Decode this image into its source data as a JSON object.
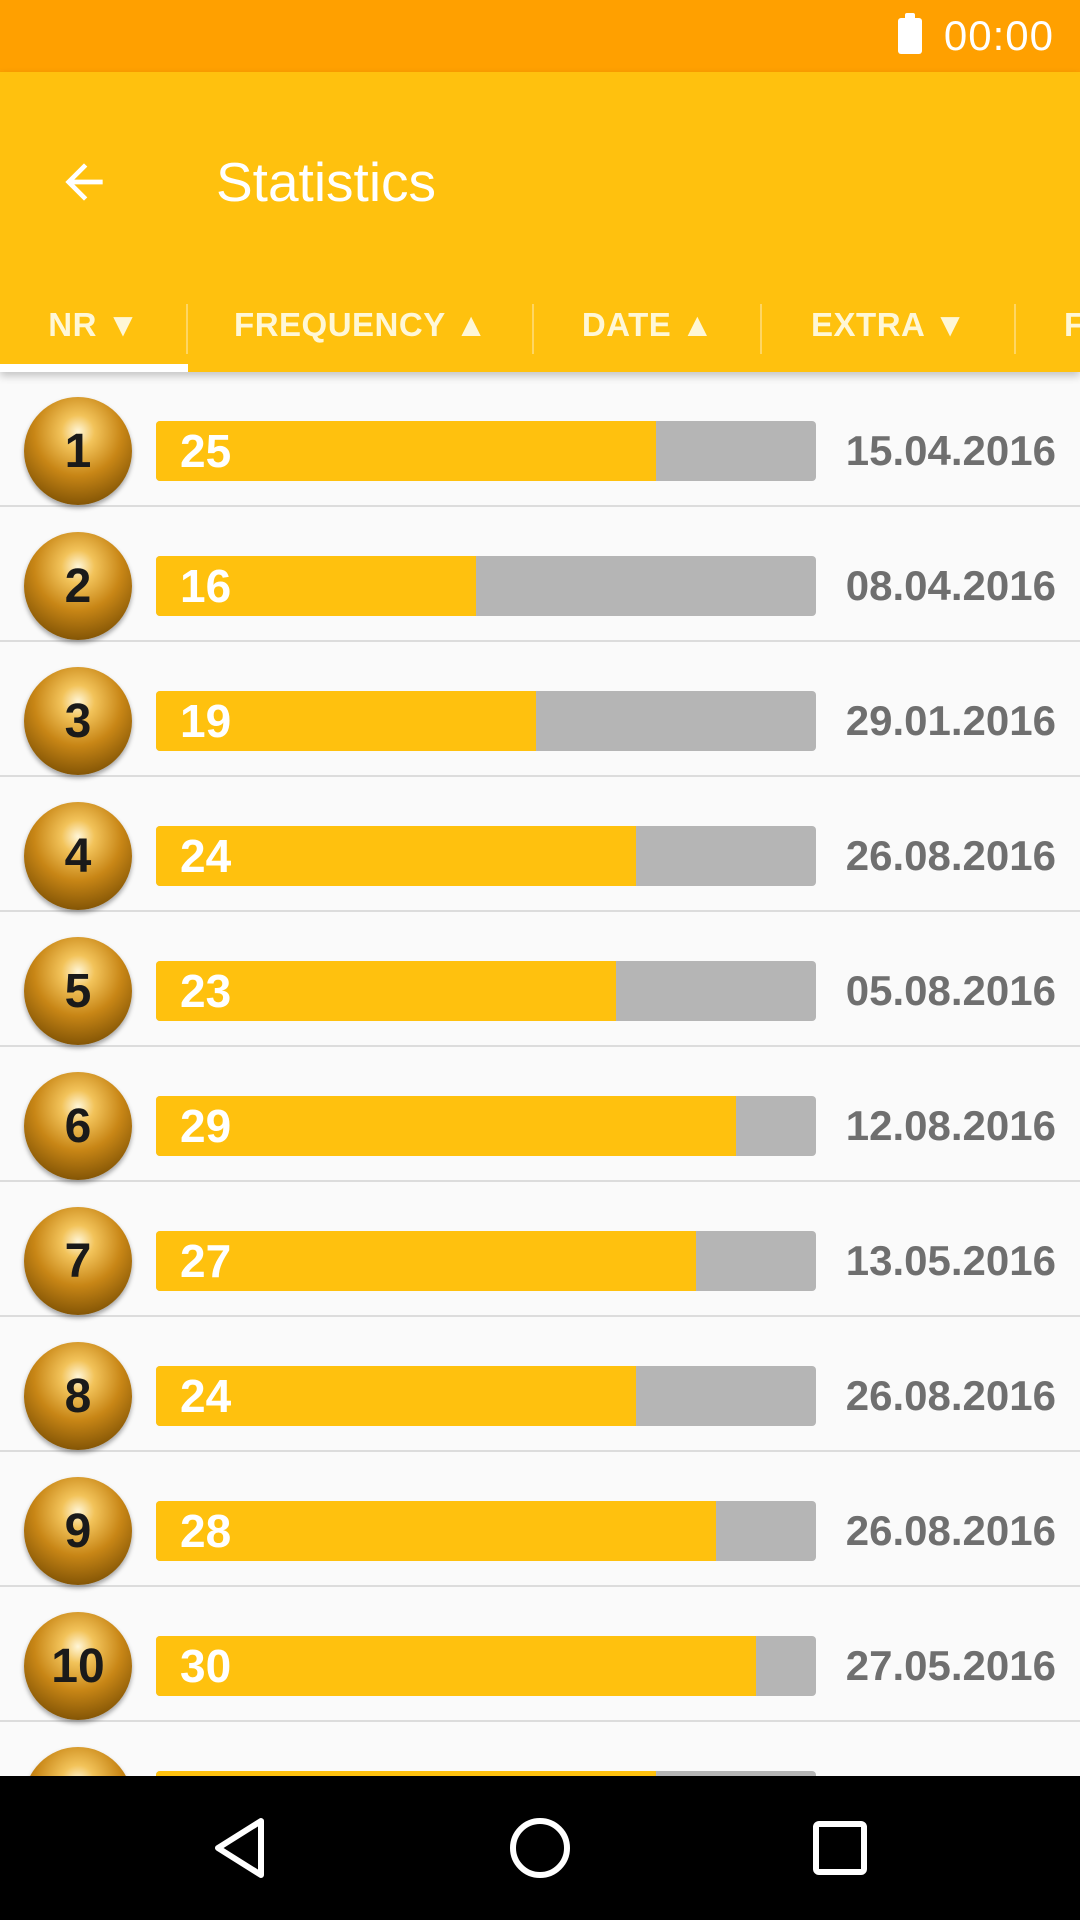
{
  "status_bar": {
    "time": "00:00",
    "battery_icon": "battery-icon"
  },
  "app_bar": {
    "title": "Statistics",
    "back_icon": "arrow-left-icon"
  },
  "tabs": [
    {
      "label": "NR ▼",
      "active": true
    },
    {
      "label": "FREQUENCY ▲",
      "active": false
    },
    {
      "label": "DATE ▲",
      "active": false
    },
    {
      "label": "EXTRA ▼",
      "active": false
    },
    {
      "label": "F",
      "active": false
    }
  ],
  "max_frequency": 33,
  "rows": [
    {
      "number": "1",
      "frequency": 25,
      "date": "15.04.2016"
    },
    {
      "number": "2",
      "frequency": 16,
      "date": "08.04.2016"
    },
    {
      "number": "3",
      "frequency": 19,
      "date": "29.01.2016"
    },
    {
      "number": "4",
      "frequency": 24,
      "date": "26.08.2016"
    },
    {
      "number": "5",
      "frequency": 23,
      "date": "05.08.2016"
    },
    {
      "number": "6",
      "frequency": 29,
      "date": "12.08.2016"
    },
    {
      "number": "7",
      "frequency": 27,
      "date": "13.05.2016"
    },
    {
      "number": "8",
      "frequency": 24,
      "date": "26.08.2016"
    },
    {
      "number": "9",
      "frequency": 28,
      "date": "26.08.2016"
    },
    {
      "number": "10",
      "frequency": 30,
      "date": "27.05.2016"
    },
    {
      "number": "",
      "frequency": 25,
      "date": ""
    }
  ],
  "nav_bar": {
    "back": "nav-back-icon",
    "home": "nav-home-icon",
    "recents": "nav-recents-icon"
  },
  "colors": {
    "accent": "#ffc10e",
    "status_bar": "#ffa000",
    "track": "#b5b5b5"
  }
}
